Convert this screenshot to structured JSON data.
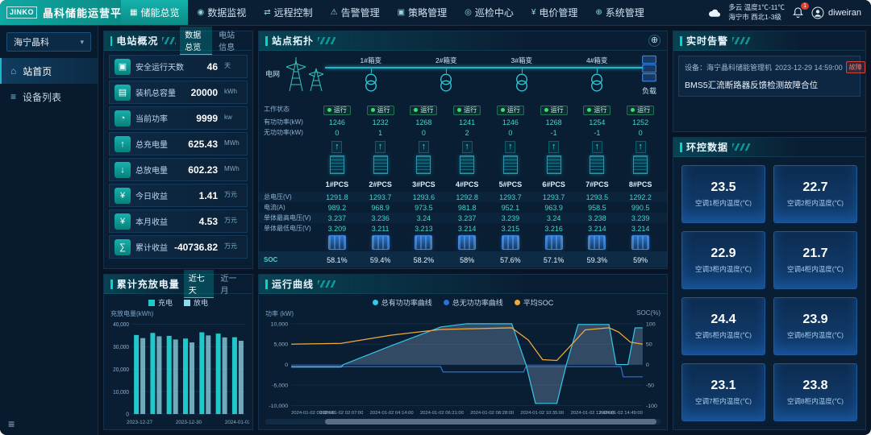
{
  "icons": {
    "chevron_down": "▾",
    "collapse_menu": "≡",
    "zoom": "⊕"
  },
  "header": {
    "logo_mark": "JINKO",
    "title": "晶科储能运营平台",
    "active_nav": "储能总览",
    "nav": [
      {
        "label": "储能总览",
        "icon": "▦"
      },
      {
        "label": "数据监视",
        "icon": "◉"
      },
      {
        "label": "远程控制",
        "icon": "⇄"
      },
      {
        "label": "告警管理",
        "icon": "⚠"
      },
      {
        "label": "策略管理",
        "icon": "▣"
      },
      {
        "label": "巡检中心",
        "icon": "◎"
      },
      {
        "label": "电价管理",
        "icon": "¥"
      },
      {
        "label": "系统管理",
        "icon": "⊕"
      }
    ],
    "weather_line1": "多云 温度1℃-11℃",
    "weather_line2": "海宁市 西北1-3级",
    "notification_count": "1",
    "username": "diweiran"
  },
  "sidebar": {
    "station_select": "海宁晶科",
    "items": [
      {
        "label": "站首页",
        "icon": "⌂",
        "active": true
      },
      {
        "label": "设备列表",
        "icon": "≡",
        "active": false
      }
    ]
  },
  "overview": {
    "title": "电站概况",
    "tabs": [
      "数据总览",
      "电站信息"
    ],
    "active_tab": "数据总览",
    "stats": [
      {
        "icon": "▣",
        "label": "安全运行天数",
        "value": "46",
        "unit": "天"
      },
      {
        "icon": "▤",
        "label": "装机总容量",
        "value": "20000",
        "unit": "kWh"
      },
      {
        "icon": "◔",
        "label": "当前功率",
        "value": "9999",
        "unit": "kw"
      },
      {
        "icon": "↑",
        "label": "总充电量",
        "value": "625.43",
        "unit": "MWh"
      },
      {
        "icon": "↓",
        "label": "总放电量",
        "value": "602.23",
        "unit": "MWh"
      },
      {
        "icon": "¥",
        "label": "今日收益",
        "value": "1.41",
        "unit": "万元"
      },
      {
        "icon": "¥",
        "label": "本月收益",
        "value": "4.53",
        "unit": "万元"
      },
      {
        "icon": "∑",
        "label": "累计收益",
        "value": "-40736.82",
        "unit": "万元"
      }
    ]
  },
  "topology": {
    "title": "站点拓扑",
    "grid_label": "电网",
    "load_label": "负载",
    "transformers": [
      "1#箱变",
      "2#箱变",
      "3#箱变",
      "4#箱变"
    ],
    "row_labels": [
      "工作状态",
      "有功功率(kW)",
      "无功功率(kW)"
    ],
    "metric_labels": [
      "总电压(V)",
      "电流(A)",
      "单体最高电压(V)",
      "单体最低电压(V)"
    ],
    "soc_label": "SOC",
    "pcs": [
      {
        "name": "1#PCS",
        "status": "运行",
        "active_power": "1246",
        "reactive_power": "0",
        "voltage": "1291.8",
        "current": "989.2",
        "cell_max": "3.237",
        "cell_min": "3.209",
        "soc": "58.1%"
      },
      {
        "name": "2#PCS",
        "status": "运行",
        "active_power": "1232",
        "reactive_power": "1",
        "voltage": "1293.7",
        "current": "968.9",
        "cell_max": "3.236",
        "cell_min": "3.211",
        "soc": "59.4%"
      },
      {
        "name": "3#PCS",
        "status": "运行",
        "active_power": "1268",
        "reactive_power": "0",
        "voltage": "1293.6",
        "current": "973.5",
        "cell_max": "3.24",
        "cell_min": "3.213",
        "soc": "58.2%"
      },
      {
        "name": "4#PCS",
        "status": "运行",
        "active_power": "1241",
        "reactive_power": "2",
        "voltage": "1292.8",
        "current": "981.8",
        "cell_max": "3.237",
        "cell_min": "3.214",
        "soc": "58%"
      },
      {
        "name": "5#PCS",
        "status": "运行",
        "active_power": "1246",
        "reactive_power": "0",
        "voltage": "1293.7",
        "current": "952.1",
        "cell_max": "3.239",
        "cell_min": "3.215",
        "soc": "57.6%"
      },
      {
        "name": "6#PCS",
        "status": "运行",
        "active_power": "1268",
        "reactive_power": "-1",
        "voltage": "1293.7",
        "current": "963.9",
        "cell_max": "3.24",
        "cell_min": "3.216",
        "soc": "57.1%"
      },
      {
        "name": "7#PCS",
        "status": "运行",
        "active_power": "1254",
        "reactive_power": "-1",
        "voltage": "1293.5",
        "current": "958.5",
        "cell_max": "3.238",
        "cell_min": "3.214",
        "soc": "59.3%"
      },
      {
        "name": "8#PCS",
        "status": "运行",
        "active_power": "1252",
        "reactive_power": "0",
        "voltage": "1292.2",
        "current": "990.5",
        "cell_max": "3.239",
        "cell_min": "3.214",
        "soc": "59%"
      }
    ]
  },
  "alarm": {
    "title": "实时告警",
    "device": "设备：海宁晶科储能管理机",
    "time": "2023-12-29 14:59:00",
    "badge": "故障",
    "message": "BMS5汇流断路器反馈检测故障合位"
  },
  "env": {
    "title": "环控数据",
    "cards": [
      {
        "value": "23.5",
        "label": "空调1柜内温度(℃)"
      },
      {
        "value": "22.7",
        "label": "空调2柜内温度(℃)"
      },
      {
        "value": "22.9",
        "label": "空调3柜内温度(℃)"
      },
      {
        "value": "21.7",
        "label": "空调4柜内温度(℃)"
      },
      {
        "value": "24.4",
        "label": "空调5柜内温度(℃)"
      },
      {
        "value": "23.9",
        "label": "空调6柜内温度(℃)"
      },
      {
        "value": "23.1",
        "label": "空调7柜内温度(℃)"
      },
      {
        "value": "23.8",
        "label": "空调8柜内温度(℃)"
      }
    ]
  },
  "chart_data": [
    {
      "type": "bar",
      "panel_title": "累计充放电量",
      "tabs": [
        "近七天",
        "近一月"
      ],
      "active_tab": "近七天",
      "ylabel": "充放电量(kWh)",
      "ymax": 40000,
      "y_ticks": [
        "40,000",
        "30,000",
        "20,000",
        "10,000",
        "0"
      ],
      "categories": [
        "2023-12-27",
        "2023-12-28",
        "2023-12-29",
        "2023-12-30",
        "2023-12-31",
        "2024-01-01",
        "2024-01-02"
      ],
      "x_tick_labels": [
        "2023-12-27",
        "2023-12-30",
        "2024-01-02"
      ],
      "x_tick_positions": [
        0,
        3,
        6
      ],
      "series": [
        {
          "name": "充电",
          "color": "#1fc9c9",
          "values": [
            35200,
            36100,
            34800,
            33600,
            36400,
            35800,
            34200
          ]
        },
        {
          "name": "放电",
          "color": "#8fd9ea",
          "values": [
            33800,
            34600,
            33200,
            31900,
            35000,
            34100,
            32600
          ]
        }
      ]
    },
    {
      "type": "line",
      "panel_title": "运行曲线",
      "legend": [
        {
          "name": "总有功功率曲线",
          "color": "#35c8e8"
        },
        {
          "name": "总无功功率曲线",
          "color": "#2e6fd6"
        },
        {
          "name": "平均SOC",
          "color": "#f2a93b"
        }
      ],
      "ylabel_left": "功率 (kW)",
      "ylabel_right": "SOC(%)",
      "y_ticks_left": [
        "10,000",
        "5,000",
        "0",
        "-5,000",
        "-10,000"
      ],
      "y_ticks_right": [
        "100",
        "50",
        "0",
        "-50",
        "-100"
      ],
      "power_range": [
        -10000,
        10000
      ],
      "soc_range": [
        -100,
        100
      ],
      "x_range_hours": [
        0,
        14.82
      ],
      "x_labels": [
        "2024-01-02 00:00:00",
        "2024-01-02 02:07:00",
        "2024-01-02 04:14:00",
        "2024-01-02 06:21:00",
        "2024-01-02 08:28:00",
        "2024-01-02 10:35:00",
        "2024-01-02 12:42:00",
        "2024-01-02 14:49:00"
      ],
      "series": {
        "active_power": [
          [
            0,
            -600
          ],
          [
            2.1,
            -600
          ],
          [
            2.2,
            0
          ],
          [
            4.2,
            4600
          ],
          [
            6.3,
            9200
          ],
          [
            7.4,
            10000
          ],
          [
            9.3,
            10000
          ],
          [
            9.9,
            0
          ],
          [
            10.3,
            -9500
          ],
          [
            11.2,
            -9500
          ],
          [
            11.6,
            0
          ],
          [
            12.1,
            9800
          ],
          [
            13.4,
            9800
          ],
          [
            13.7,
            0
          ],
          [
            14.2,
            0
          ],
          [
            14.5,
            9000
          ],
          [
            14.82,
            9000
          ]
        ],
        "reactive_power": [
          [
            0,
            -500
          ],
          [
            6.3,
            -500
          ],
          [
            6.4,
            -1800
          ],
          [
            9.8,
            -1800
          ],
          [
            9.9,
            -500
          ],
          [
            13.9,
            -500
          ],
          [
            14.0,
            -3000
          ],
          [
            14.82,
            -3000
          ]
        ],
        "avg_soc": [
          [
            0,
            50
          ],
          [
            2.1,
            52
          ],
          [
            4.2,
            72
          ],
          [
            6.3,
            86
          ],
          [
            9.3,
            90
          ],
          [
            10.0,
            60
          ],
          [
            10.6,
            12
          ],
          [
            11.2,
            10
          ],
          [
            12.4,
            85
          ],
          [
            13.4,
            90
          ],
          [
            13.8,
            80
          ],
          [
            14.3,
            55
          ],
          [
            14.82,
            50
          ]
        ]
      }
    }
  ]
}
